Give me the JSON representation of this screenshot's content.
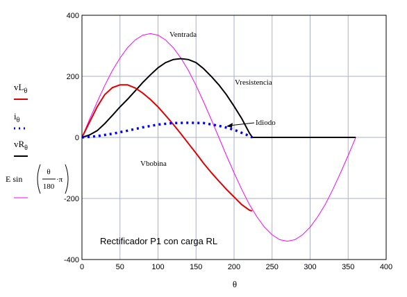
{
  "chart_data": {
    "type": "line",
    "title": "",
    "xlabel": "θ",
    "ylabel": "",
    "xlim": [
      0,
      400
    ],
    "ylim": [
      -400,
      400
    ],
    "x_ticks": [
      0,
      50,
      100,
      150,
      200,
      250,
      300,
      350,
      400
    ],
    "y_ticks": [
      -400,
      -200,
      0,
      200,
      400
    ],
    "grid": true,
    "caption": "Rectificador P1 con carga RL",
    "annotations": {
      "ventrada": "Ventrada",
      "vresistencia": "Vresistencia",
      "idiodo": "Idiodo",
      "vbobina": "Vbobina"
    },
    "legend": {
      "placement": "left",
      "vL": {
        "base": "vL",
        "sub": "θ"
      },
      "i": {
        "base": "i",
        "sub": "θ"
      },
      "vR": {
        "base": "vR",
        "sub": "θ"
      },
      "source": {
        "prefix": "E  sin",
        "numerator": "θ",
        "denominator": "180",
        "suffix": "·π"
      }
    },
    "series": [
      {
        "key": "vL",
        "color": "#e00000",
        "style": "solid",
        "x": [
          0,
          10,
          20,
          30,
          40,
          50,
          60,
          70,
          80,
          90,
          100,
          110,
          120,
          130,
          140,
          150,
          160,
          170,
          180,
          190,
          200,
          210,
          220,
          222,
          224
        ],
        "y": [
          0,
          50,
          100,
          140,
          163,
          172,
          172,
          162,
          145,
          124,
          100,
          72,
          43,
          12,
          -20,
          -52,
          -85,
          -115,
          -143,
          -170,
          -195,
          -220,
          -238,
          -240,
          -240
        ]
      },
      {
        "key": "i",
        "color": "#0000ff",
        "style": "dotted",
        "x": [
          0,
          20,
          40,
          60,
          80,
          100,
          120,
          140,
          160,
          180,
          190,
          200,
          210,
          220,
          224
        ],
        "y": [
          0,
          4,
          12,
          22,
          33,
          42,
          47,
          48,
          47,
          38,
          32,
          25,
          15,
          5,
          0
        ]
      },
      {
        "key": "vR",
        "color": "#000000",
        "style": "solid",
        "x": [
          0,
          10,
          20,
          30,
          40,
          50,
          60,
          70,
          80,
          90,
          100,
          110,
          120,
          130,
          140,
          150,
          160,
          170,
          180,
          190,
          200,
          210,
          220,
          224,
          360
        ],
        "y": [
          0,
          8,
          22,
          45,
          72,
          100,
          125,
          152,
          180,
          205,
          228,
          245,
          255,
          258,
          255,
          245,
          225,
          200,
          172,
          140,
          102,
          62,
          15,
          0,
          0
        ]
      },
      {
        "key": "source",
        "color": "#ff00ff",
        "style": "solid",
        "amplitude": 340,
        "x": [
          0,
          10,
          20,
          30,
          40,
          50,
          60,
          70,
          80,
          90,
          100,
          110,
          120,
          130,
          140,
          150,
          160,
          170,
          180,
          190,
          200,
          210,
          220,
          230,
          240,
          250,
          260,
          270,
          280,
          290,
          300,
          310,
          320,
          330,
          340,
          350,
          360
        ],
        "y": [
          0,
          59,
          116,
          170,
          219,
          260,
          294,
          319,
          335,
          340,
          335,
          319,
          294,
          260,
          219,
          170,
          116,
          59,
          0,
          -59,
          -116,
          -170,
          -219,
          -260,
          -294,
          -319,
          -335,
          -340,
          -335,
          -319,
          -294,
          -260,
          -219,
          -170,
          -116,
          -59,
          0
        ]
      }
    ]
  }
}
